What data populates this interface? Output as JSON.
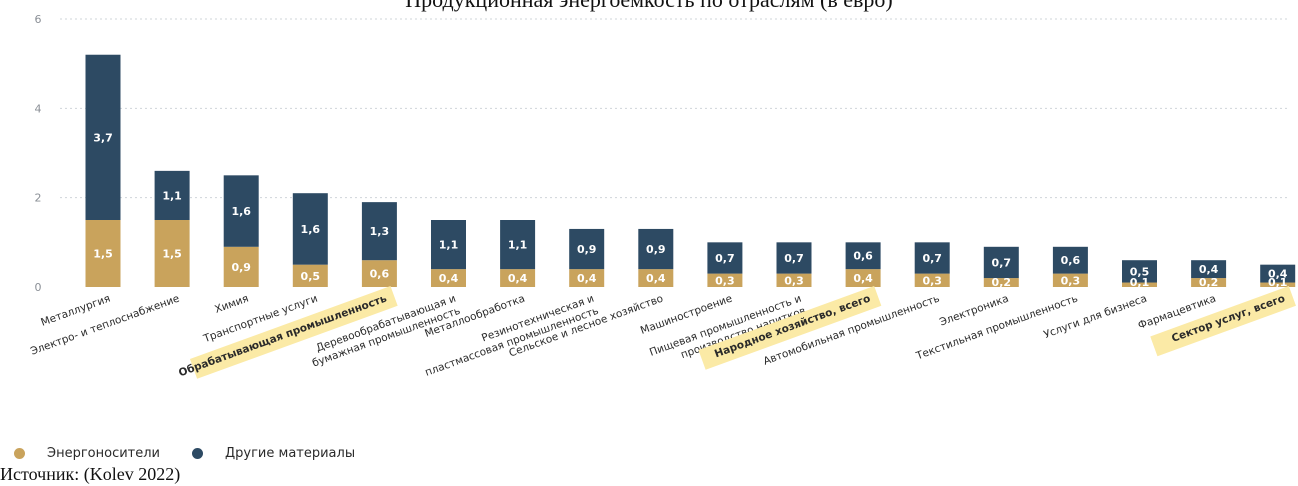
{
  "header": {
    "title": "Продукционная энергоёмкость по отраслям (в евро)"
  },
  "footer": {
    "source": "Источник: (Kolev 2022)"
  },
  "colors": {
    "energy": "#c9a35c",
    "other": "#2d4a63",
    "highlight": "#fbeaa6"
  },
  "chart_data": {
    "type": "bar",
    "stacked": true,
    "categories": [
      "Металлургия",
      "Электро- и теплоснабжение",
      "Химия",
      "Транспортные услуги",
      "Обрабатывающая промышленность",
      "Деревообрабатывающая и бумажная промышленность",
      "Металлообработка",
      "Резинотехническая и пластмассовая промышленность",
      "Сельское и лесное хозяйство",
      "Машиностроение",
      "Пищевая промышленность и производство напитков",
      "Народное хозяйство, всего",
      "Автомобильная промышленность",
      "Электроника",
      "Текстильная промышленность",
      "Услуги для бизнеса",
      "Фармацевтика",
      "Сектор услуг, всего"
    ],
    "highlighted": [
      "Обрабатывающая промышленность",
      "Народное хозяйство, всего",
      "Сектор услуг, всего"
    ],
    "series": [
      {
        "name": "Энергоносители",
        "values": [
          1.5,
          1.5,
          0.9,
          0.5,
          0.6,
          0.4,
          0.4,
          0.4,
          0.4,
          0.3,
          0.3,
          0.4,
          0.3,
          0.2,
          0.3,
          0.1,
          0.2,
          0.1
        ],
        "labels": [
          "1,5",
          "1,5",
          "0,9",
          "0,5",
          "0,6",
          "0,4",
          "0,4",
          "0,4",
          "0,4",
          "0,3",
          "0,3",
          "0,4",
          "0,3",
          "0,2",
          "0,3",
          "0,1",
          "0,2",
          "0,1"
        ]
      },
      {
        "name": "Другие материалы",
        "values": [
          3.7,
          1.1,
          1.6,
          1.6,
          1.3,
          1.1,
          1.1,
          0.9,
          0.9,
          0.7,
          0.7,
          0.6,
          0.7,
          0.7,
          0.6,
          0.5,
          0.4,
          0.4
        ],
        "labels": [
          "3,7",
          "1,1",
          "1,6",
          "1,6",
          "1,3",
          "1,1",
          "1,1",
          "0,9",
          "0,9",
          "0,7",
          "0,7",
          "0,6",
          "0,7",
          "0,7",
          "0,6",
          "0,5",
          "0,4",
          "0,4"
        ]
      }
    ],
    "yticks": [
      0,
      2,
      4,
      6
    ],
    "ylim": [
      0,
      6
    ],
    "grid": true,
    "legend_position": "bottom-left"
  }
}
